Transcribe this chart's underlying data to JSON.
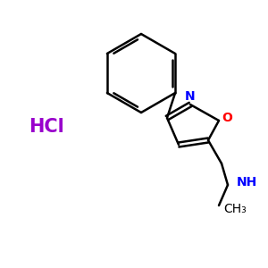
{
  "background_color": "#ffffff",
  "bond_color": "#000000",
  "N_color": "#0000ff",
  "O_color": "#ff0000",
  "HCl_color": "#9900cc",
  "figsize": [
    3.0,
    3.0
  ],
  "dpi": 100,
  "HCl_text": "HCl",
  "HCl_fontsize": 15,
  "N_label": "N",
  "O_label": "O",
  "NH_label": "NH",
  "CH3_label": "CH₃"
}
